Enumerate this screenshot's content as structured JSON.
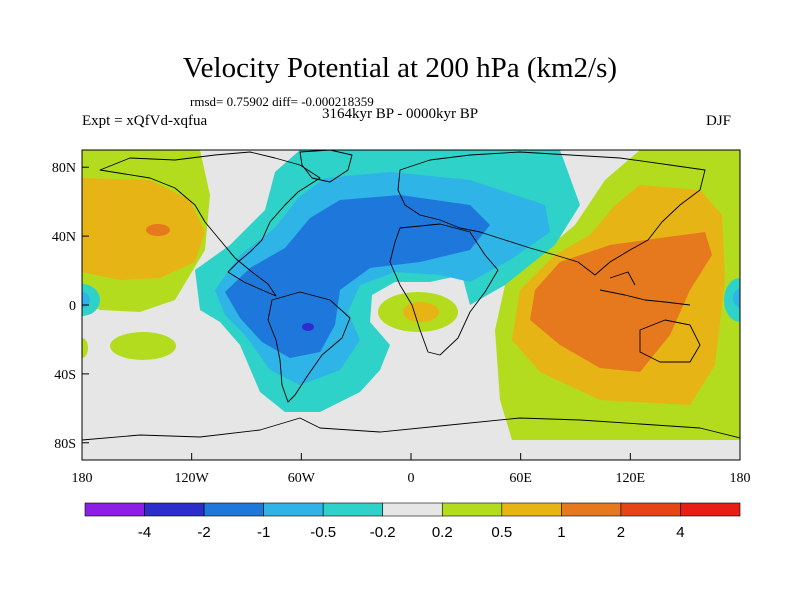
{
  "title": "Velocity Potential at 200 hPa (km2/s)",
  "stats_line": "rmsd= 0.75902 diff= -0.000218359",
  "period": "3164kyr BP - 0000kyr BP",
  "experiment": "Expt = xQfVd-xqfua",
  "season": "DJF",
  "map": {
    "lon_range": [
      -180,
      180
    ],
    "lat_range": [
      -90,
      90
    ],
    "x_ticks": [
      {
        "value": -180,
        "label": "180"
      },
      {
        "value": -120,
        "label": "120W"
      },
      {
        "value": -60,
        "label": "60W"
      },
      {
        "value": 0,
        "label": "0"
      },
      {
        "value": 60,
        "label": "60E"
      },
      {
        "value": 120,
        "label": "120E"
      },
      {
        "value": 180,
        "label": "180"
      }
    ],
    "y_ticks": [
      {
        "value": 80,
        "label": "80N"
      },
      {
        "value": 40,
        "label": "40N"
      },
      {
        "value": 0,
        "label": "0"
      },
      {
        "value": -40,
        "label": "40S"
      },
      {
        "value": -80,
        "label": "80S"
      }
    ]
  },
  "colorbar": {
    "colors": [
      "#8c1ee6",
      "#2d2dcc",
      "#1e78dc",
      "#2eb4e6",
      "#2ed2c8",
      "#e6e6e6",
      "#b4dc1e",
      "#e6b414",
      "#e6781e",
      "#e64614",
      "#e61e14"
    ],
    "labels": [
      "-4",
      "-2",
      "-1",
      "-0.5",
      "-0.2",
      "0.2",
      "0.5",
      "1",
      "2",
      "4"
    ]
  }
}
